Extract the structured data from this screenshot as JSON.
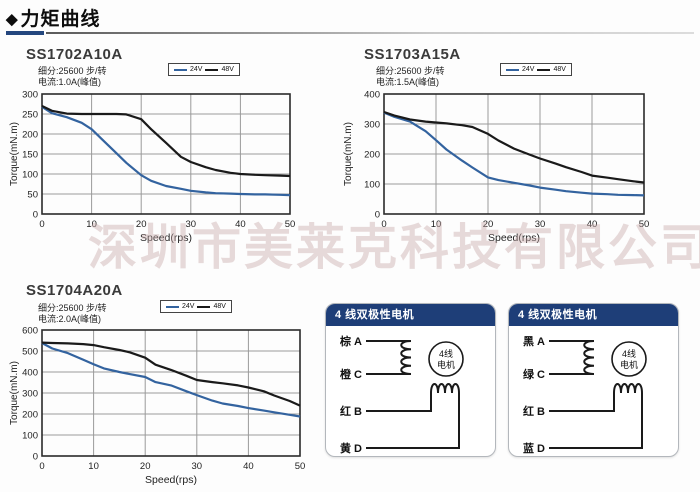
{
  "page": {
    "title": "力矩曲线",
    "title_icon": "◆",
    "watermark": "深圳市美莱克科技有限公司"
  },
  "colors": {
    "v24": "#33639f",
    "v48": "#1a1a1a",
    "header_blue": "#1e3e78",
    "underline_blue": "#24477e",
    "grid_gray": "#9a9a9a"
  },
  "chart_data": [
    {
      "type": "line",
      "title": "SS1702A10A",
      "info": [
        "细分:25600 步/转",
        "电流:1.0A(峰值)"
      ],
      "xlabel": "Speed(rps)",
      "ylabel": "Torque(mN.m)",
      "xlim": [
        0,
        50
      ],
      "ylim": [
        0,
        300
      ],
      "xticks": [
        0,
        10,
        20,
        30,
        40,
        50
      ],
      "yticks": [
        0,
        50,
        100,
        150,
        200,
        250,
        300
      ],
      "grid": true,
      "legend_position": "top",
      "x": [
        0,
        2,
        5,
        8,
        10,
        12,
        15,
        17,
        20,
        22,
        25,
        28,
        30,
        33,
        35,
        38,
        40,
        43,
        45,
        48,
        50
      ],
      "series": [
        {
          "name": "24V",
          "values": [
            268,
            252,
            242,
            228,
            212,
            188,
            152,
            128,
            97,
            83,
            70,
            63,
            58,
            54,
            52,
            51,
            50,
            49,
            49,
            48,
            47
          ]
        },
        {
          "name": "48V",
          "values": [
            270,
            258,
            251,
            250,
            250,
            250,
            250,
            249,
            237,
            212,
            178,
            143,
            130,
            117,
            110,
            103,
            100,
            98,
            97,
            96,
            95
          ]
        }
      ]
    },
    {
      "type": "line",
      "title": "SS1703A15A",
      "info": [
        "细分:25600 步/转",
        "电流:1.5A(峰值)"
      ],
      "xlabel": "Speed(rps)",
      "ylabel": "Torque(mN.m)",
      "xlim": [
        0,
        50
      ],
      "ylim": [
        0,
        400
      ],
      "xticks": [
        0,
        10,
        20,
        30,
        40,
        50
      ],
      "yticks": [
        0,
        100,
        200,
        300,
        400
      ],
      "grid": true,
      "legend_position": "top",
      "x": [
        0,
        2,
        5,
        8,
        10,
        12,
        15,
        17,
        20,
        22,
        25,
        28,
        30,
        33,
        35,
        38,
        40,
        43,
        45,
        48,
        50
      ],
      "series": [
        {
          "name": "24V",
          "values": [
            338,
            324,
            308,
            276,
            246,
            215,
            178,
            155,
            122,
            113,
            104,
            95,
            88,
            81,
            76,
            71,
            68,
            66,
            64,
            63,
            62
          ]
        },
        {
          "name": "48V",
          "values": [
            340,
            328,
            315,
            308,
            305,
            302,
            296,
            290,
            267,
            245,
            218,
            198,
            185,
            168,
            156,
            140,
            128,
            121,
            116,
            109,
            105
          ]
        }
      ]
    },
    {
      "type": "line",
      "title": "SS1704A20A",
      "info": [
        "细分:25600 步/转",
        "电流:2.0A(峰值)"
      ],
      "xlabel": "Speed(rps)",
      "ylabel": "Torque(mN.m)",
      "xlim": [
        0,
        50
      ],
      "ylim": [
        0,
        600
      ],
      "xticks": [
        0,
        10,
        20,
        30,
        40,
        50
      ],
      "yticks": [
        0,
        100,
        200,
        300,
        400,
        500,
        600
      ],
      "grid": true,
      "legend_position": "top",
      "x": [
        0,
        2,
        5,
        8,
        10,
        12,
        15,
        17,
        20,
        22,
        25,
        28,
        30,
        33,
        35,
        38,
        40,
        43,
        45,
        48,
        50
      ],
      "series": [
        {
          "name": "24V",
          "values": [
            538,
            512,
            490,
            458,
            437,
            417,
            400,
            390,
            376,
            352,
            336,
            308,
            290,
            264,
            250,
            238,
            228,
            216,
            208,
            196,
            188
          ]
        },
        {
          "name": "48V",
          "values": [
            540,
            538,
            536,
            533,
            528,
            518,
            505,
            494,
            468,
            435,
            410,
            382,
            362,
            352,
            346,
            336,
            326,
            308,
            288,
            262,
            240
          ]
        }
      ]
    }
  ],
  "wiring": {
    "cards": [
      {
        "header": "4 线双极性电机",
        "motor_line1": "4线",
        "motor_line2": "电机",
        "terminal_a": "棕 A",
        "terminal_c": "橙 C",
        "terminal_b": "红 B",
        "terminal_d": "黄 D"
      },
      {
        "header": "4 线双极性电机",
        "motor_line1": "4线",
        "motor_line2": "电机",
        "terminal_a": "黑 A",
        "terminal_c": "绿 C",
        "terminal_b": "红 B",
        "terminal_d": "蓝 D"
      }
    ]
  }
}
